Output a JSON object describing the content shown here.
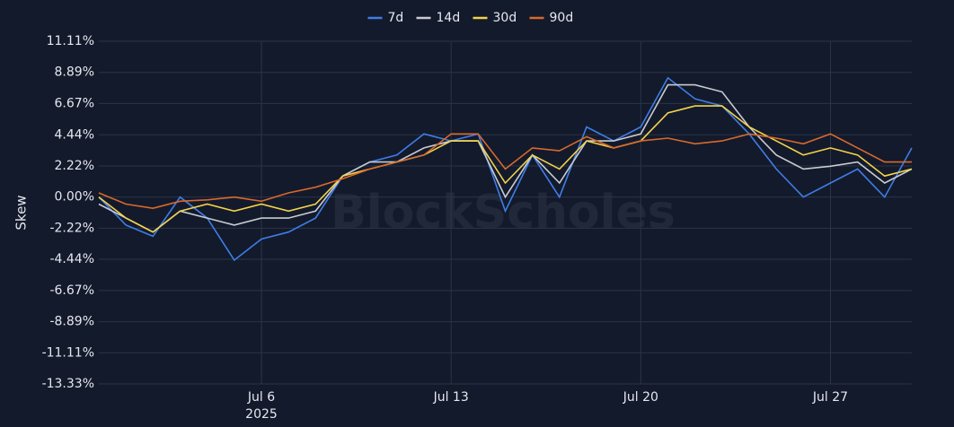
{
  "chart_data": {
    "type": "line",
    "y_label": "Skew",
    "watermark": "BlockScholes",
    "x_year_label": "2025",
    "x": [
      "2025-06-30",
      "2025-07-01",
      "2025-07-02",
      "2025-07-03",
      "2025-07-04",
      "2025-07-05",
      "2025-07-06",
      "2025-07-07",
      "2025-07-08",
      "2025-07-09",
      "2025-07-10",
      "2025-07-11",
      "2025-07-12",
      "2025-07-13",
      "2025-07-14",
      "2025-07-15",
      "2025-07-16",
      "2025-07-17",
      "2025-07-18",
      "2025-07-19",
      "2025-07-20",
      "2025-07-21",
      "2025-07-22",
      "2025-07-23",
      "2025-07-24",
      "2025-07-25",
      "2025-07-26",
      "2025-07-27",
      "2025-07-28",
      "2025-07-29",
      "2025-07-30"
    ],
    "xlim": [
      "2025-06-30",
      "2025-07-30"
    ],
    "xticks": [
      {
        "value": "2025-07-06",
        "label": "Jul 6"
      },
      {
        "value": "2025-07-13",
        "label": "Jul 13"
      },
      {
        "value": "2025-07-20",
        "label": "Jul 20"
      },
      {
        "value": "2025-07-27",
        "label": "Jul 27"
      }
    ],
    "ylim": [
      -13.33,
      11.11
    ],
    "yticks": [
      {
        "value": 11.11,
        "label": "11.11%"
      },
      {
        "value": 8.89,
        "label": "8.89%"
      },
      {
        "value": 6.67,
        "label": "6.67%"
      },
      {
        "value": 4.44,
        "label": "4.44%"
      },
      {
        "value": 2.22,
        "label": "2.22%"
      },
      {
        "value": 0,
        "label": "0.00%"
      },
      {
        "value": -2.22,
        "label": "-2.22%"
      },
      {
        "value": -4.44,
        "label": "-4.44%"
      },
      {
        "value": -6.67,
        "label": "-6.67%"
      },
      {
        "value": -8.89,
        "label": "-8.89%"
      },
      {
        "value": -11.11,
        "label": "-11.11%"
      },
      {
        "value": -13.33,
        "label": "-13.33%"
      }
    ],
    "grid": true,
    "legend": "top",
    "series": [
      {
        "name": "7d",
        "color": "#3f7de6",
        "values": [
          0,
          -2,
          -2.8,
          0,
          -1.5,
          -4.5,
          -3,
          -2.5,
          -1.5,
          1.5,
          2.5,
          3,
          4.5,
          4,
          4.5,
          -1,
          3,
          0,
          5,
          4,
          5,
          8.5,
          7,
          6.5,
          4.5,
          2,
          0,
          1,
          2,
          0,
          3.5
        ]
      },
      {
        "name": "14d",
        "color": "#c9cbd0",
        "values": [
          -0.5,
          -1.5,
          -2.5,
          -1,
          -1.5,
          -2,
          -1.5,
          -1.5,
          -1,
          1.5,
          2.5,
          2.5,
          3.5,
          4,
          4,
          0,
          3,
          1,
          4,
          4,
          4.5,
          8,
          8,
          7.5,
          5,
          3,
          2,
          2.2,
          2.5,
          1,
          2
        ]
      },
      {
        "name": "30d",
        "color": "#f3d34a",
        "values": [
          0,
          -1.5,
          -2.5,
          -1,
          -0.5,
          -1,
          -0.5,
          -1,
          -0.5,
          1.5,
          2,
          2.5,
          3,
          4,
          4,
          1,
          3,
          2,
          4,
          3.5,
          4,
          6,
          6.5,
          6.5,
          5,
          4,
          3,
          3.5,
          3,
          1.5,
          2
        ]
      },
      {
        "name": "90d",
        "color": "#d8692b",
        "values": [
          0.3,
          -0.5,
          -0.8,
          -0.3,
          -0.2,
          0,
          -0.3,
          0.3,
          0.7,
          1.3,
          2,
          2.5,
          3,
          4.5,
          4.5,
          2,
          3.5,
          3.3,
          4.3,
          3.5,
          4,
          4.2,
          3.8,
          4,
          4.5,
          4.2,
          3.8,
          4.5,
          3.5,
          2.5,
          2.5
        ]
      }
    ]
  }
}
